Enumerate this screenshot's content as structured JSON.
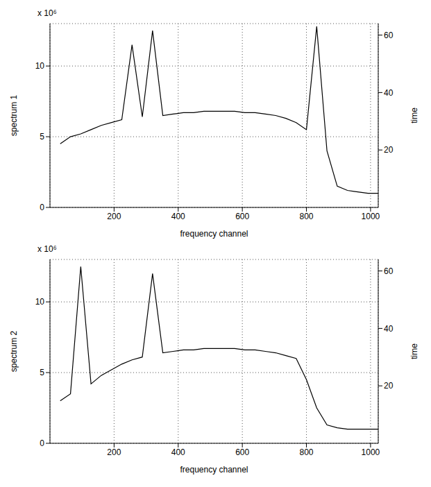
{
  "chart_data": [
    {
      "type": "line",
      "y_label": "spectrum 1",
      "x_label": "frequency channel",
      "y2_label": "time",
      "annotation": "x 10⁶",
      "x": [
        32,
        64,
        96,
        128,
        160,
        192,
        224,
        256,
        288,
        320,
        352,
        384,
        416,
        448,
        480,
        512,
        544,
        576,
        608,
        640,
        672,
        704,
        736,
        768,
        800,
        832,
        864,
        896,
        928,
        960,
        992,
        1024
      ],
      "values": [
        4.5,
        5.0,
        5.2,
        5.5,
        5.8,
        6.0,
        6.2,
        11.5,
        6.4,
        12.5,
        6.5,
        6.6,
        6.7,
        6.7,
        6.8,
        6.8,
        6.8,
        6.8,
        6.7,
        6.7,
        6.6,
        6.5,
        6.3,
        6.0,
        5.5,
        12.8,
        4.0,
        1.5,
        1.2,
        1.1,
        1.0,
        1.0
      ],
      "color": "#000000",
      "xlim": [
        0,
        1024
      ],
      "xticks": [
        200,
        400,
        600,
        800,
        1000
      ],
      "ylim": [
        0,
        13
      ],
      "yticks": [
        0,
        5,
        10
      ],
      "y2lim": [
        0,
        64
      ],
      "y2ticks": [
        20,
        40,
        60
      ],
      "grid": true
    },
    {
      "type": "line",
      "y_label": "spectrum 2",
      "x_label": "frequency channel",
      "y2_label": "time",
      "annotation": "x 10⁶",
      "x": [
        32,
        64,
        96,
        128,
        160,
        192,
        224,
        256,
        288,
        320,
        352,
        384,
        416,
        448,
        480,
        512,
        544,
        576,
        608,
        640,
        672,
        704,
        736,
        768,
        800,
        832,
        864,
        896,
        928,
        960,
        992,
        1024
      ],
      "values": [
        3.0,
        3.5,
        12.5,
        4.2,
        4.8,
        5.2,
        5.6,
        5.9,
        6.1,
        12.0,
        6.4,
        6.5,
        6.6,
        6.6,
        6.7,
        6.7,
        6.7,
        6.7,
        6.6,
        6.6,
        6.5,
        6.4,
        6.2,
        6.0,
        4.5,
        2.5,
        1.3,
        1.1,
        1.0,
        1.0,
        1.0,
        1.0
      ],
      "color": "#000000",
      "xlim": [
        0,
        1024
      ],
      "xticks": [
        200,
        400,
        600,
        800,
        1000
      ],
      "ylim": [
        0,
        13
      ],
      "yticks": [
        0,
        5,
        10
      ],
      "y2lim": [
        0,
        64
      ],
      "y2ticks": [
        20,
        40,
        60
      ],
      "grid": true
    }
  ]
}
